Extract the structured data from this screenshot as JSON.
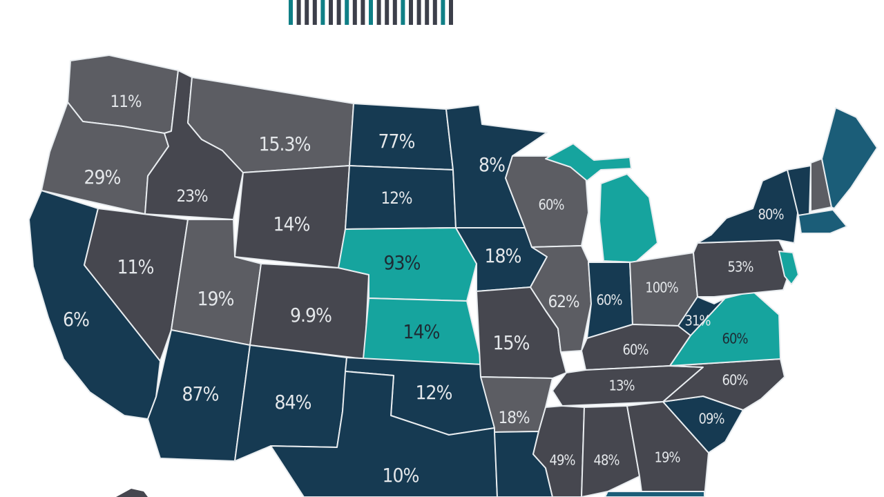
{
  "legend": {
    "colors": [
      "#0f7f86",
      "#3c3f4a",
      "#3c3f4a",
      "#3c3f4a",
      "#0f7f86",
      "#3c3f4a",
      "#3c3f4a",
      "#0f7f86",
      "#3c3f4a",
      "#3c3f4a",
      "#0f7f86",
      "#3c3f4a",
      "#3c3f4a",
      "#3c3f4a",
      "#0f7f86",
      "#3c3f4a",
      "#3c3f4a",
      "#3c3f4a",
      "#3c3f4a",
      "#0f7f86",
      "#3c3f4a"
    ]
  },
  "palette": {
    "gray": "#5c5d63",
    "dark_gray": "#46474f",
    "navy": "#163a52",
    "blue": "#1b5d78",
    "teal": "#16a49e",
    "label_light": "#e4e7ea",
    "label_dark": "#1e2b34",
    "background": "#ffffff"
  },
  "states": [
    {
      "id": "WA",
      "label": "11%"
    },
    {
      "id": "OR",
      "label": "29%"
    },
    {
      "id": "CA",
      "label": "6%"
    },
    {
      "id": "ID",
      "label": "23%"
    },
    {
      "id": "NV",
      "label": "11%"
    },
    {
      "id": "MT",
      "label": "15.3%"
    },
    {
      "id": "WY",
      "label": "14%"
    },
    {
      "id": "UT",
      "label": "19%"
    },
    {
      "id": "CO",
      "label": "9.9%"
    },
    {
      "id": "AZ",
      "label": "87%"
    },
    {
      "id": "NM",
      "label": "84%"
    },
    {
      "id": "ND",
      "label": "77%"
    },
    {
      "id": "SD",
      "label": "12%"
    },
    {
      "id": "NE",
      "label": "93%"
    },
    {
      "id": "KS",
      "label": "14%"
    },
    {
      "id": "OK",
      "label": "12%"
    },
    {
      "id": "TX",
      "label": "10%"
    },
    {
      "id": "MN",
      "label": "8%"
    },
    {
      "id": "IA",
      "label": "18%"
    },
    {
      "id": "MO",
      "label": "15%"
    },
    {
      "id": "AR",
      "label": "18%"
    },
    {
      "id": "LA",
      "label": ""
    },
    {
      "id": "WI",
      "label": "60%"
    },
    {
      "id": "IL",
      "label": "62%"
    },
    {
      "id": "MI",
      "label": ""
    },
    {
      "id": "IN",
      "label": "60%"
    },
    {
      "id": "OH",
      "label": "100%"
    },
    {
      "id": "KY",
      "label": "60%"
    },
    {
      "id": "TN",
      "label": "13%"
    },
    {
      "id": "MS",
      "label": "49%"
    },
    {
      "id": "AL",
      "label": "48%"
    },
    {
      "id": "GA",
      "label": "19%"
    },
    {
      "id": "SC",
      "label": "09%"
    },
    {
      "id": "NC",
      "label": "60%"
    },
    {
      "id": "VA",
      "label": "60%"
    },
    {
      "id": "WV",
      "label": "31%"
    },
    {
      "id": "PA",
      "label": "53%"
    },
    {
      "id": "NY",
      "label": "80%"
    },
    {
      "id": "NJ",
      "label": ""
    },
    {
      "id": "VT",
      "label": ""
    },
    {
      "id": "NH",
      "label": ""
    },
    {
      "id": "MA",
      "label": ""
    },
    {
      "id": "ME",
      "label": ""
    },
    {
      "id": "FL",
      "label": ""
    }
  ]
}
